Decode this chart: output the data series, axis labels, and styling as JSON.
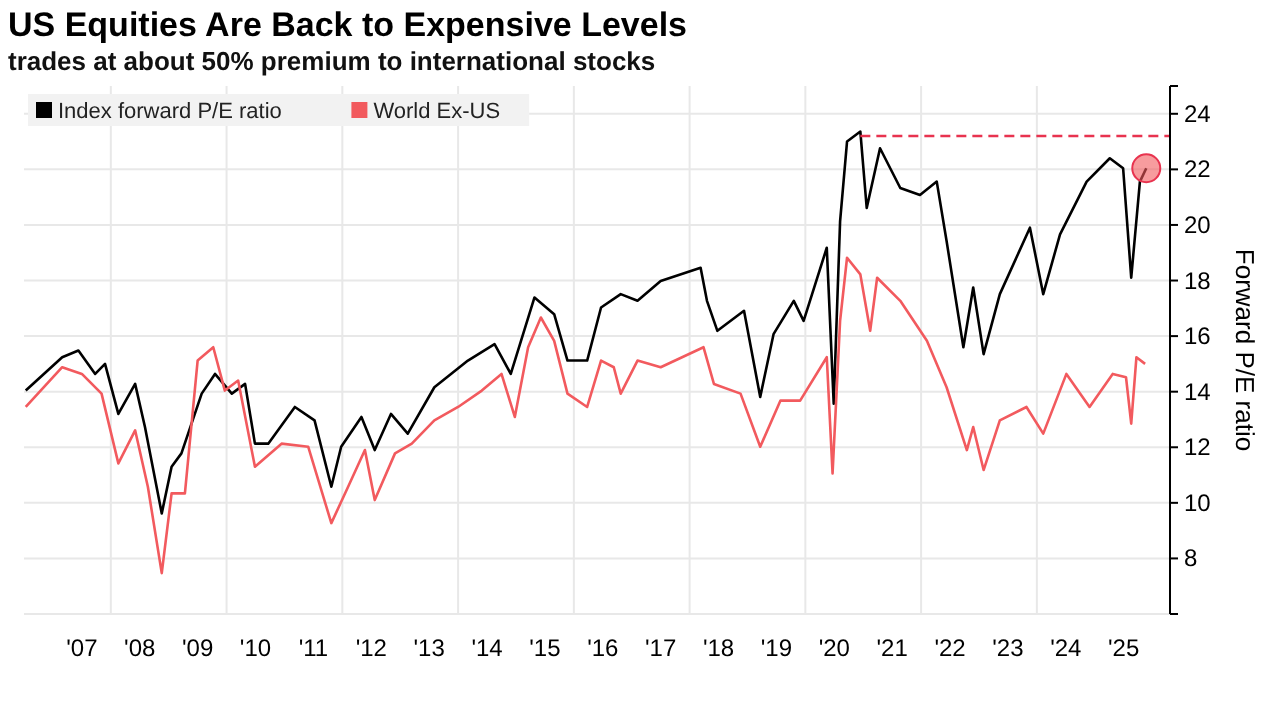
{
  "chart_data": {
    "type": "line",
    "title": "US Equities Are Back to Expensive Levels",
    "subtitle": "trades at about 50% premium to international stocks",
    "ylabel": "Forward P/E ratio",
    "xlim": [
      2006,
      2025.8
    ],
    "ylim": [
      6,
      25
    ],
    "xticks": [
      {
        "value": 2007,
        "label": "'07"
      },
      {
        "value": 2007.5,
        "label": null
      },
      {
        "value": 2008,
        "label": "'08"
      },
      {
        "value": 2009,
        "label": "'09"
      },
      {
        "value": 2009.5,
        "label": null
      },
      {
        "value": 2010,
        "label": "'10"
      },
      {
        "value": 2011,
        "label": "'11"
      },
      {
        "value": 2011.5,
        "label": null
      },
      {
        "value": 2012,
        "label": "'12"
      },
      {
        "value": 2013,
        "label": "'13"
      },
      {
        "value": 2013.5,
        "label": null
      },
      {
        "value": 2014,
        "label": "'14"
      },
      {
        "value": 2015,
        "label": "'15"
      },
      {
        "value": 2015.5,
        "label": null
      },
      {
        "value": 2016,
        "label": "'16"
      },
      {
        "value": 2017,
        "label": "'17"
      },
      {
        "value": 2017.5,
        "label": null
      },
      {
        "value": 2018,
        "label": "'18"
      },
      {
        "value": 2019,
        "label": "'19"
      },
      {
        "value": 2019.5,
        "label": null
      },
      {
        "value": 2020,
        "label": "'20"
      },
      {
        "value": 2021,
        "label": "'21"
      },
      {
        "value": 2021.5,
        "label": null
      },
      {
        "value": 2022,
        "label": "'22"
      },
      {
        "value": 2023,
        "label": "'23"
      },
      {
        "value": 2023.5,
        "label": null
      },
      {
        "value": 2024,
        "label": "'24"
      },
      {
        "value": 2025,
        "label": "'25"
      }
    ],
    "yticks": [
      8,
      10,
      12,
      14,
      16,
      18,
      20,
      22,
      24
    ],
    "grid": true,
    "legend": "top left",
    "ref_lines": [
      {
        "axis": "y",
        "value": 23.2,
        "color": "#e8334f",
        "line_style": "dashed"
      }
    ],
    "series": [
      {
        "name": "Index forward P/E ratio",
        "color": "#000000",
        "x": [
          2006.03,
          2006.66,
          2006.94,
          2007.23,
          2007.4,
          2007.63,
          2007.92,
          2008.09,
          2008.38,
          2008.55,
          2008.72,
          2009.07,
          2009.3,
          2009.59,
          2009.82,
          2009.99,
          2010.22,
          2010.68,
          2011.02,
          2011.31,
          2011.48,
          2011.83,
          2012.06,
          2012.34,
          2012.63,
          2013.09,
          2013.67,
          2014.13,
          2014.41,
          2014.82,
          2015.16,
          2015.39,
          2015.73,
          2015.97,
          2016.31,
          2016.6,
          2017.0,
          2017.69,
          2017.8,
          2017.98,
          2018.44,
          2018.72,
          2018.95,
          2019.3,
          2019.47,
          2019.87,
          2019.99,
          2020.1,
          2020.22,
          2020.45,
          2020.56,
          2020.79,
          2021.14,
          2021.48,
          2021.77,
          2021.94,
          2022.23,
          2022.4,
          2022.58,
          2022.86,
          2023.38,
          2023.61,
          2023.9,
          2024.36,
          2024.76,
          2024.99,
          2025.13,
          2025.28,
          2025.39
        ],
        "values": [
          14.04,
          15.24,
          15.48,
          14.64,
          15.0,
          13.2,
          14.28,
          12.73,
          9.62,
          11.3,
          11.78,
          13.93,
          14.64,
          13.93,
          14.28,
          12.13,
          12.13,
          13.45,
          12.97,
          10.58,
          12.02,
          13.09,
          11.9,
          13.2,
          12.49,
          14.16,
          15.12,
          15.71,
          14.64,
          17.39,
          16.79,
          15.12,
          15.12,
          17.03,
          17.51,
          17.27,
          17.98,
          18.46,
          17.27,
          16.19,
          16.91,
          13.81,
          16.07,
          17.27,
          16.55,
          19.18,
          13.57,
          20.13,
          23.0,
          23.36,
          20.61,
          22.76,
          21.33,
          21.08,
          21.56,
          19.42,
          15.6,
          17.75,
          15.35,
          17.51,
          19.9,
          17.51,
          19.66,
          21.56,
          22.4,
          22.04,
          18.1,
          21.56,
          22.04
        ]
      },
      {
        "name": "World Ex-US",
        "color": "#f25a5e",
        "x": [
          2006.03,
          2006.66,
          2007.0,
          2007.34,
          2007.63,
          2007.92,
          2008.14,
          2008.38,
          2008.55,
          2008.78,
          2009.0,
          2009.27,
          2009.47,
          2009.7,
          2009.99,
          2010.45,
          2010.91,
          2011.31,
          2011.6,
          2011.89,
          2012.06,
          2012.41,
          2012.7,
          2013.09,
          2013.5,
          2013.91,
          2014.25,
          2014.48,
          2014.71,
          2014.93,
          2015.16,
          2015.39,
          2015.73,
          2015.97,
          2016.19,
          2016.31,
          2016.6,
          2017.0,
          2017.74,
          2017.92,
          2018.38,
          2018.72,
          2019.07,
          2019.41,
          2019.87,
          2019.97,
          2020.1,
          2020.22,
          2020.45,
          2020.62,
          2020.74,
          2021.14,
          2021.6,
          2021.94,
          2022.29,
          2022.4,
          2022.58,
          2022.86,
          2023.32,
          2023.61,
          2024.01,
          2024.41,
          2024.81,
          2025.04,
          2025.13,
          2025.22,
          2025.37
        ],
        "values": [
          13.45,
          14.88,
          14.64,
          13.93,
          11.42,
          12.61,
          10.58,
          7.47,
          10.34,
          10.34,
          15.12,
          15.6,
          14.04,
          14.4,
          11.3,
          12.13,
          12.02,
          9.27,
          10.58,
          11.9,
          10.1,
          11.78,
          12.13,
          12.97,
          13.45,
          14.04,
          14.64,
          13.09,
          15.6,
          16.67,
          15.83,
          13.93,
          13.45,
          15.12,
          14.88,
          13.93,
          15.12,
          14.88,
          15.6,
          14.28,
          13.93,
          12.02,
          13.68,
          13.68,
          15.24,
          11.06,
          16.55,
          18.82,
          18.22,
          16.19,
          18.1,
          17.27,
          15.83,
          14.16,
          11.9,
          12.73,
          11.18,
          12.97,
          13.45,
          12.49,
          14.64,
          13.45,
          14.64,
          14.52,
          12.85,
          15.24,
          15.0
        ]
      }
    ]
  }
}
